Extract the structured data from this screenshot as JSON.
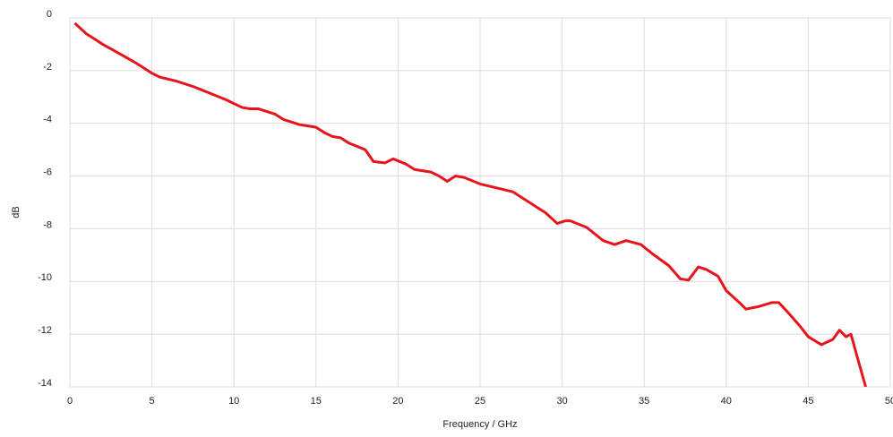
{
  "chart_data": {
    "type": "line",
    "xlabel": "Frequency / GHz",
    "ylabel": "dB",
    "x": [
      0.3,
      1,
      2,
      3,
      4,
      5,
      5.5,
      6.5,
      7.5,
      8.5,
      9.5,
      10.5,
      11,
      11.5,
      12.5,
      13,
      14,
      14.5,
      15,
      15.5,
      16,
      16.5,
      17,
      18,
      18.5,
      19.2,
      19.7,
      20.5,
      21,
      22,
      22.5,
      23,
      23.5,
      24,
      25,
      26,
      27,
      28,
      29,
      29.7,
      30.2,
      30.5,
      31.5,
      32.5,
      33.2,
      33.9,
      34.8,
      35.5,
      36.5,
      37.2,
      37.7,
      38.3,
      38.8,
      39.5,
      40,
      40.8,
      41.2,
      42,
      42.8,
      43.2,
      43.8,
      44.5,
      45,
      45.8,
      46.5,
      46.9,
      47.3,
      47.6,
      48,
      48.5
    ],
    "values": [
      -0.2,
      -0.6,
      -1.0,
      -1.35,
      -1.7,
      -2.1,
      -2.25,
      -2.4,
      -2.6,
      -2.85,
      -3.1,
      -3.4,
      -3.45,
      -3.45,
      -3.65,
      -3.85,
      -4.05,
      -4.1,
      -4.15,
      -4.35,
      -4.5,
      -4.55,
      -4.75,
      -5.0,
      -5.45,
      -5.5,
      -5.35,
      -5.55,
      -5.75,
      -5.85,
      -6.0,
      -6.2,
      -6.0,
      -6.05,
      -6.3,
      -6.45,
      -6.6,
      -7.0,
      -7.4,
      -7.8,
      -7.7,
      -7.7,
      -7.95,
      -8.45,
      -8.6,
      -8.45,
      -8.6,
      -8.95,
      -9.4,
      -9.9,
      -9.95,
      -9.45,
      -9.55,
      -9.8,
      -10.35,
      -10.8,
      -11.05,
      -10.95,
      -10.8,
      -10.8,
      -11.2,
      -11.7,
      -12.1,
      -12.4,
      -12.2,
      -11.85,
      -12.1,
      -12.0,
      -12.9,
      -14.0
    ],
    "color": "#e8141c",
    "xlim": [
      0,
      50
    ],
    "xticks": [
      0,
      5,
      10,
      15,
      20,
      25,
      30,
      35,
      40,
      45,
      50
    ],
    "ylim": [
      -14,
      0
    ],
    "yticks": [
      0,
      -2,
      -4,
      -6,
      -8,
      -10,
      -12,
      -14
    ],
    "grid": true
  }
}
